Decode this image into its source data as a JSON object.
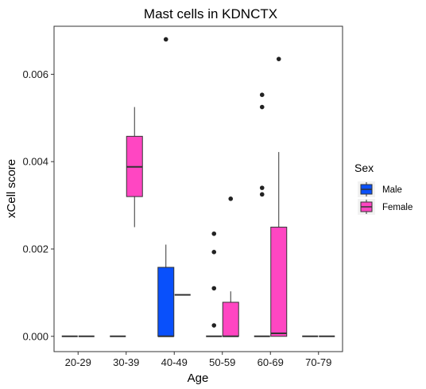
{
  "chart_data": {
    "type": "boxplot",
    "title": "Mast cells in KDNCTX",
    "xlabel": "Age",
    "ylabel": "xCell score",
    "ylim": [
      -0.00035,
      0.0071
    ],
    "yticks": [
      0.0,
      0.002,
      0.004,
      0.006
    ],
    "ytick_labels": [
      "0.000",
      "0.002",
      "0.004",
      "0.006"
    ],
    "categories": [
      "20-29",
      "30-39",
      "40-49",
      "50-59",
      "60-69",
      "70-79"
    ],
    "legend": {
      "title": "Sex",
      "placement": "right",
      "entries": [
        {
          "key": "Male",
          "label": "Male",
          "color": "#0950fb"
        },
        {
          "key": "Female",
          "label": "Female",
          "color": "#ff46c2"
        }
      ]
    },
    "series": [
      {
        "name": "Male",
        "color": "#0950fb",
        "boxes": [
          {
            "category": "20-29",
            "min": 0,
            "q1": 0,
            "median": 0,
            "q3": 0,
            "max": 0,
            "outliers": []
          },
          {
            "category": "30-39",
            "min": 0,
            "q1": 0,
            "median": 0,
            "q3": 0,
            "max": 0,
            "outliers": []
          },
          {
            "category": "40-49",
            "min": 0,
            "q1": 0,
            "median": 0,
            "q3": 0.00158,
            "max": 0.0021,
            "outliers": [
              0.0068
            ]
          },
          {
            "category": "50-59",
            "min": 0,
            "q1": 0,
            "median": 0,
            "q3": 0,
            "max": 0,
            "outliers": [
              0.00025,
              0.0011,
              0.00193,
              0.00235
            ]
          },
          {
            "category": "60-69",
            "min": 0,
            "q1": 0,
            "median": 0,
            "q3": 0,
            "max": 0,
            "outliers": [
              0.00325,
              0.0034,
              0.00525,
              0.00553
            ]
          },
          {
            "category": "70-79",
            "min": 0,
            "q1": 0,
            "median": 0,
            "q3": 0,
            "max": 0,
            "outliers": []
          }
        ]
      },
      {
        "name": "Female",
        "color": "#ff46c2",
        "boxes": [
          {
            "category": "20-29",
            "min": 0,
            "q1": 0,
            "median": 0,
            "q3": 0,
            "max": 0,
            "outliers": []
          },
          {
            "category": "30-39",
            "min": 0.0025,
            "q1": 0.0032,
            "median": 0.00388,
            "q3": 0.00458,
            "max": 0.00525,
            "outliers": []
          },
          {
            "category": "40-49",
            "min": 0.00095,
            "q1": 0.00095,
            "median": 0.00095,
            "q3": 0.00095,
            "max": 0.00095,
            "outliers": []
          },
          {
            "category": "50-59",
            "min": 0,
            "q1": 0,
            "median": 0,
            "q3": 0.00078,
            "max": 0.00103,
            "outliers": [
              0.00315
            ]
          },
          {
            "category": "60-69",
            "min": 0,
            "q1": 0,
            "median": 7e-05,
            "q3": 0.0025,
            "max": 0.00422,
            "outliers": [
              0.00635
            ]
          },
          {
            "category": "70-79",
            "min": 0,
            "q1": 0,
            "median": 0,
            "q3": 0,
            "max": 0,
            "outliers": []
          }
        ]
      }
    ]
  }
}
